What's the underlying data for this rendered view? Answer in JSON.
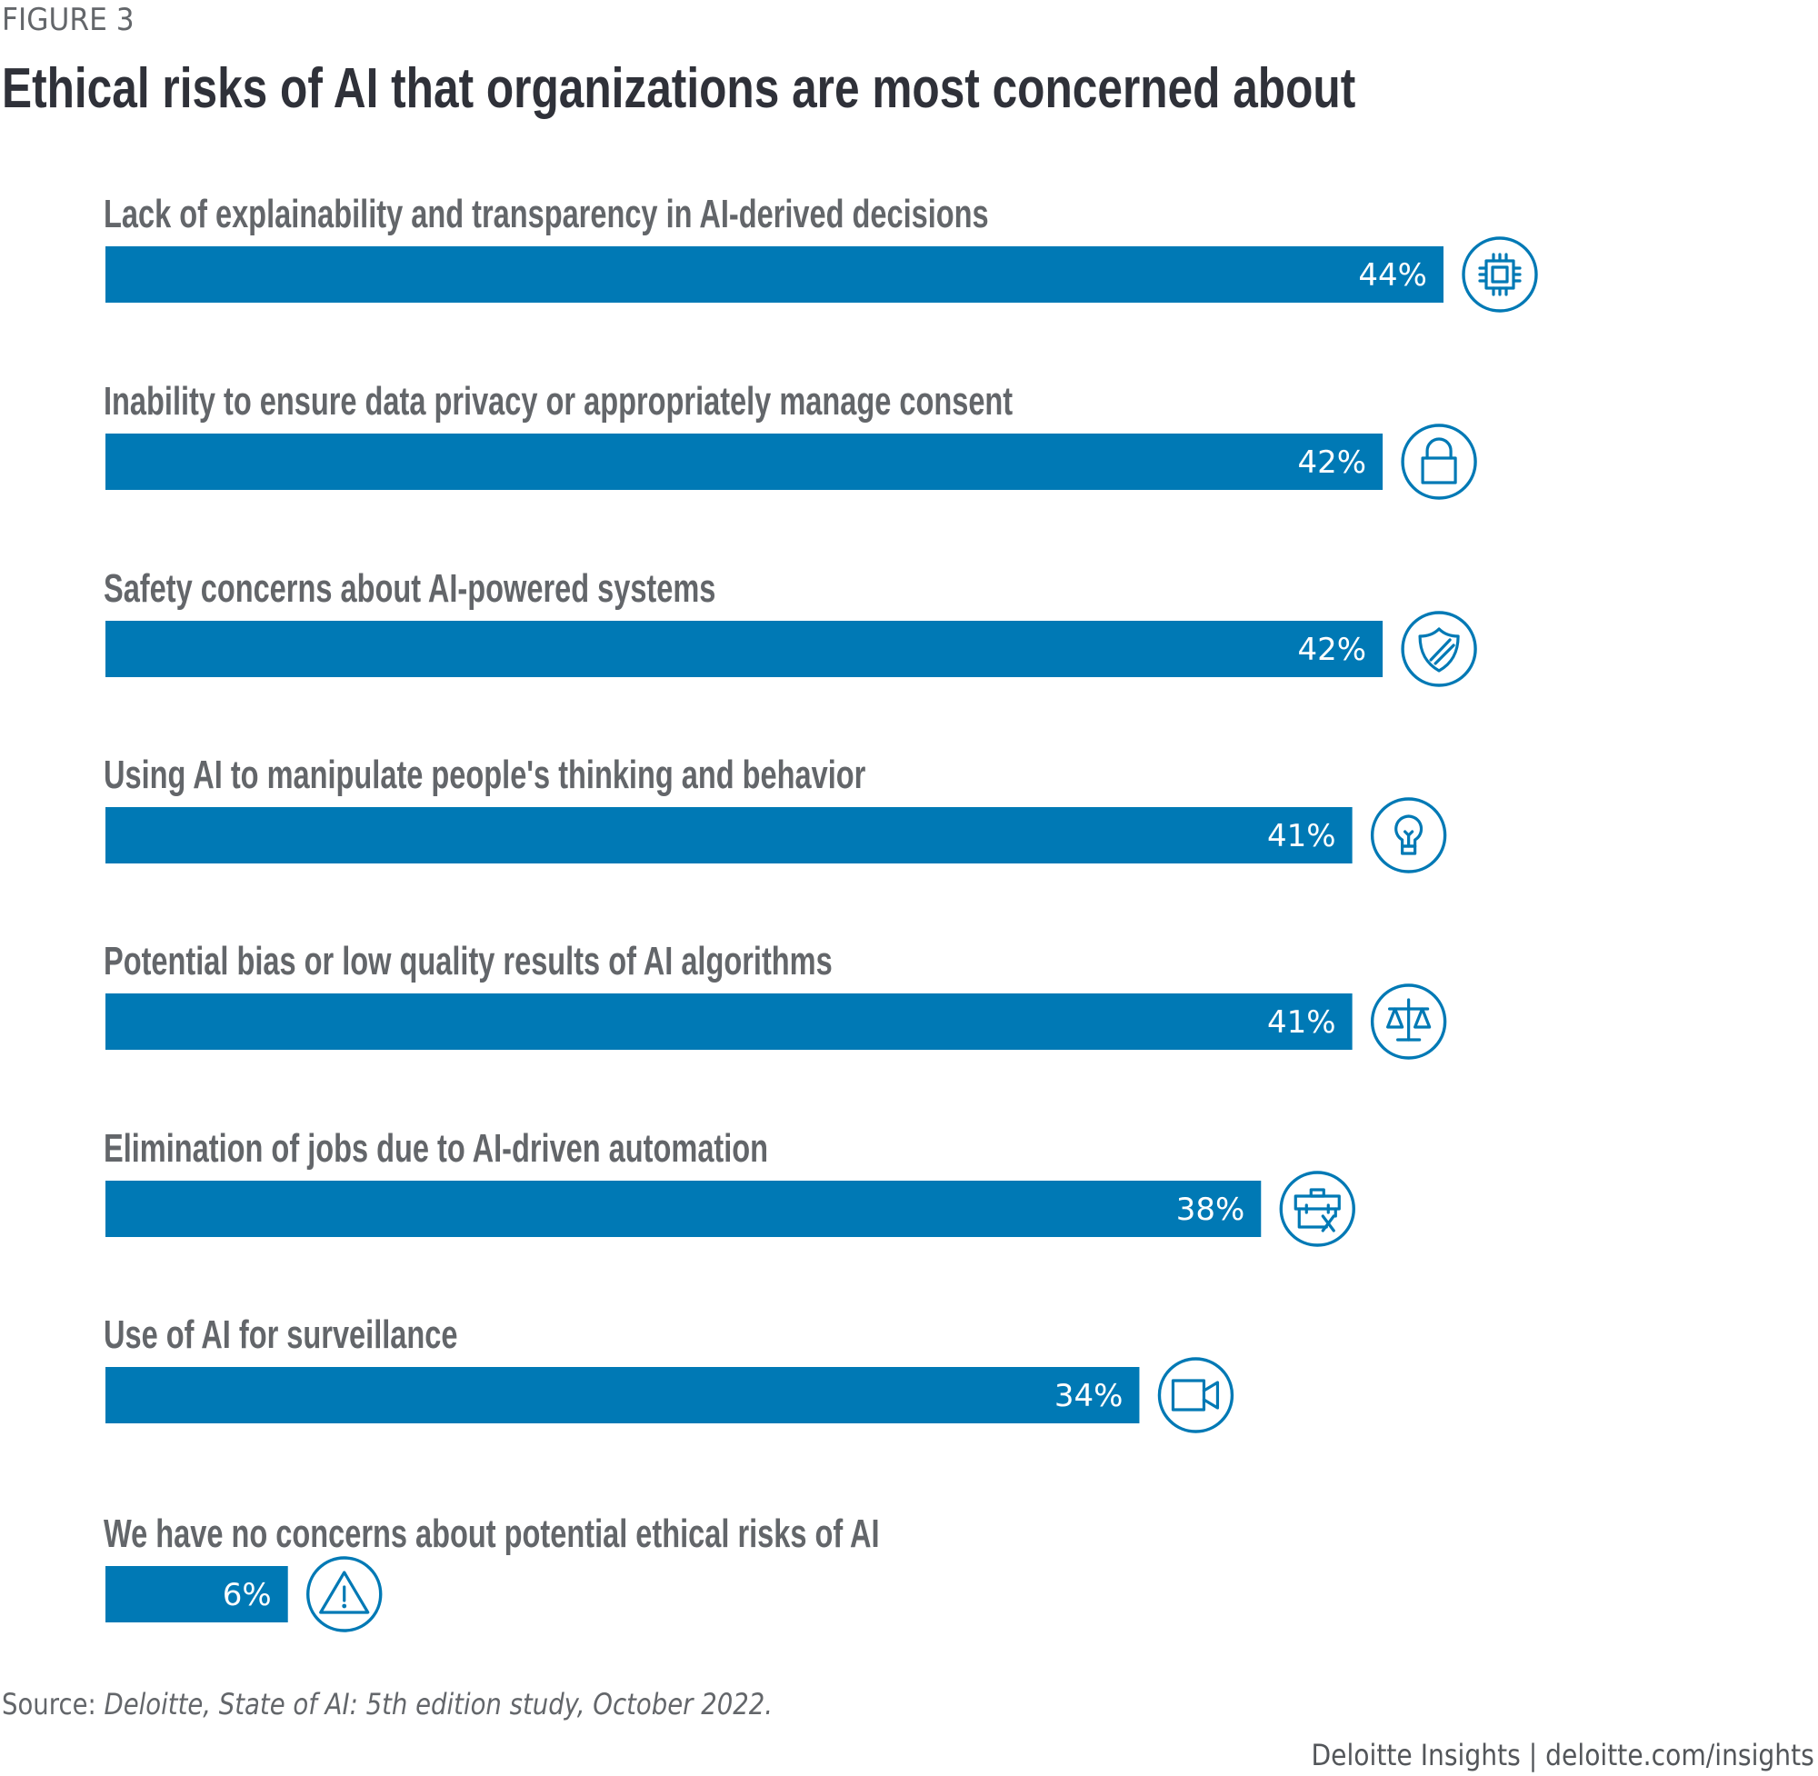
{
  "figure_label": "FIGURE 3",
  "title": "Ethical risks of AI that organizations are most concerned about",
  "source_prefix": "Source: ",
  "source_text": "Deloitte, State of AI: 5th edition study, October 2022.",
  "footer": "Deloitte Insights | deloitte.com/insights",
  "colors": {
    "bar": "#0079b5",
    "icon": "#0079b5",
    "label": "#63666a",
    "title": "#2f3139"
  },
  "chart_data": {
    "type": "bar",
    "orientation": "horizontal",
    "title": "Ethical risks of AI that organizations are most concerned about",
    "xlabel": "",
    "ylabel": "",
    "unit": "%",
    "xlim": [
      0,
      44
    ],
    "grid": false,
    "legend": "none",
    "categories": [
      "Lack of explainability and transparency in AI-derived decisions",
      "Inability to ensure data privacy or appropriately manage consent",
      "Safety concerns about AI-powered systems",
      "Using AI to manipulate people's thinking and behavior",
      "Potential bias or low quality results of AI algorithms",
      "Elimination of jobs due to AI-driven automation",
      "Use of AI for surveillance",
      "We have no concerns about potential ethical risks of AI"
    ],
    "values": [
      44,
      42,
      42,
      41,
      41,
      38,
      34,
      6
    ],
    "value_labels": [
      "44%",
      "42%",
      "42%",
      "41%",
      "41%",
      "38%",
      "34%",
      "6%"
    ],
    "icons": [
      "microchip-icon",
      "lock-icon",
      "shield-icon",
      "lightbulb-icon",
      "scales-icon",
      "briefcase-x-icon",
      "video-camera-icon",
      "warning-triangle-icon"
    ]
  }
}
